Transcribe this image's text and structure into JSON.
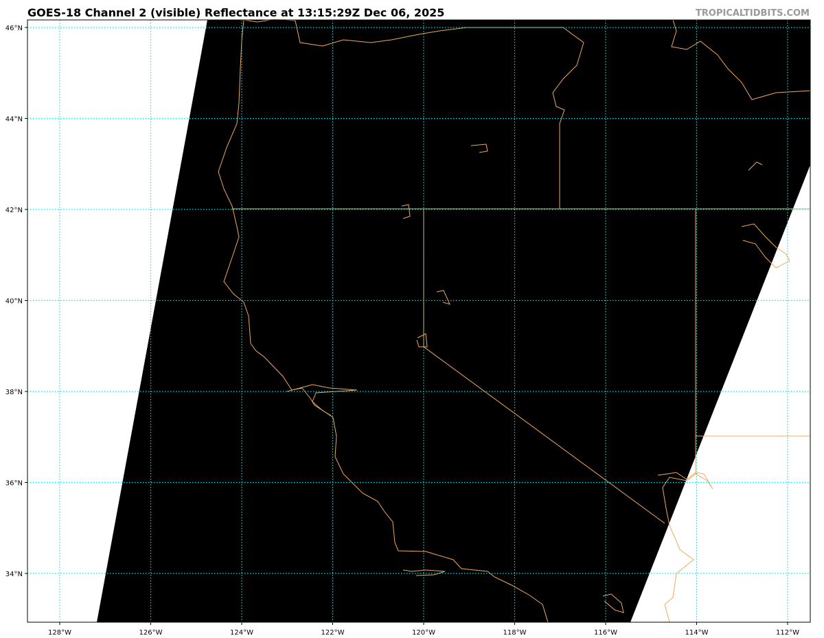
{
  "header": {
    "title": "GOES-18 Channel 2 (visible) Reflectance at 13:15:29Z Dec 06, 2025",
    "credit": "TROPICALTIDBITS.COM"
  },
  "map": {
    "extent": {
      "lon": [
        -128.7,
        -111.5
      ],
      "lat": [
        32.9,
        46.2
      ]
    },
    "lat_ticks": [
      {
        "value": 46,
        "label": "46°N"
      },
      {
        "value": 44,
        "label": "44°N"
      },
      {
        "value": 42,
        "label": "42°N"
      },
      {
        "value": 40,
        "label": "40°N"
      },
      {
        "value": 38,
        "label": "38°N"
      },
      {
        "value": 36,
        "label": "36°N"
      },
      {
        "value": 34,
        "label": "34°N"
      }
    ],
    "lon_ticks": [
      {
        "value": -128,
        "label": "128°W"
      },
      {
        "value": -126,
        "label": "126°W"
      },
      {
        "value": -124,
        "label": "124°W"
      },
      {
        "value": -122,
        "label": "122°W"
      },
      {
        "value": -120,
        "label": "120°W"
      },
      {
        "value": -118,
        "label": "118°W"
      },
      {
        "value": -116,
        "label": "116°W"
      },
      {
        "value": -114,
        "label": "114°W"
      },
      {
        "value": -112,
        "label": "112°W"
      }
    ],
    "colors": {
      "imagery": "#000000",
      "no_data": "#ffffff",
      "gridlines": "#00e5e5",
      "coastlines": "#f0a860",
      "borders": "#f0a860"
    }
  }
}
